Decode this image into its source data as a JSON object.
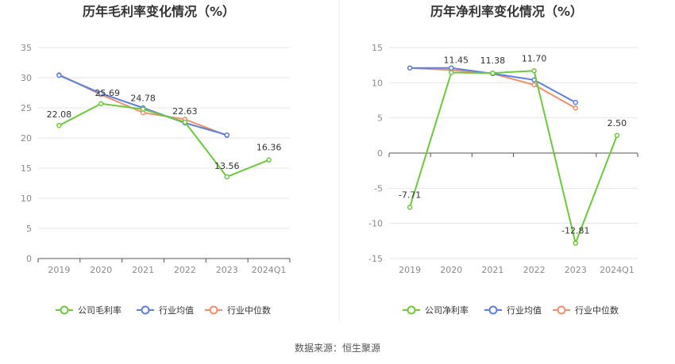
{
  "colors": {
    "company": "#6cc83c",
    "industry_avg": "#5b7fe0",
    "industry_median": "#f0906a",
    "grid": "#e6e6e6",
    "axis": "#555555",
    "divider": "#eeeeee"
  },
  "legend": {
    "gross_company": "公司毛利率",
    "net_company": "公司净利率",
    "industry_avg": "行业均值",
    "industry_median": "行业中位数"
  },
  "source": "数据来源：恒生聚源",
  "chart_data": [
    {
      "type": "line",
      "title": "历年毛利率变化情况（%）",
      "categories": [
        "2019",
        "2020",
        "2021",
        "2022",
        "2023",
        "2024Q1"
      ],
      "ylim": [
        0,
        35
      ],
      "yticks": [
        0,
        5,
        10,
        15,
        20,
        25,
        30,
        35
      ],
      "grid": true,
      "legend_position": "bottom",
      "series": [
        {
          "name": "公司毛利率",
          "key": "company",
          "values": [
            22.08,
            25.69,
            24.78,
            22.63,
            13.56,
            16.36
          ],
          "labels": [
            "22.08",
            "25.69",
            "24.78",
            "22.63",
            "13.56",
            "16.36"
          ]
        },
        {
          "name": "行业均值",
          "key": "industry_avg",
          "values": [
            30.4,
            27.4,
            25.0,
            22.5,
            20.5,
            null
          ]
        },
        {
          "name": "行业中位数",
          "key": "industry_median",
          "values": [
            30.5,
            27.2,
            24.2,
            23.1,
            20.4,
            null
          ]
        }
      ]
    },
    {
      "type": "line",
      "title": "历年净利率变化情况（%）",
      "categories": [
        "2019",
        "2020",
        "2021",
        "2022",
        "2023",
        "2024Q1"
      ],
      "ylim": [
        -15,
        15
      ],
      "yticks": [
        -15,
        -10,
        -5,
        0,
        5,
        10,
        15
      ],
      "grid": true,
      "legend_position": "bottom",
      "series": [
        {
          "name": "公司净利率",
          "key": "company",
          "values": [
            -7.71,
            11.45,
            11.38,
            11.7,
            -12.81,
            2.5
          ],
          "labels": [
            "-7.71",
            "11.45",
            "11.38",
            "11.70",
            "-12.81",
            "2.50"
          ]
        },
        {
          "name": "行业均值",
          "key": "industry_avg",
          "values": [
            12.1,
            12.1,
            11.3,
            10.4,
            7.2,
            null
          ]
        },
        {
          "name": "行业中位数",
          "key": "industry_median",
          "values": [
            12.1,
            11.8,
            11.3,
            9.7,
            6.4,
            null
          ]
        }
      ]
    }
  ]
}
